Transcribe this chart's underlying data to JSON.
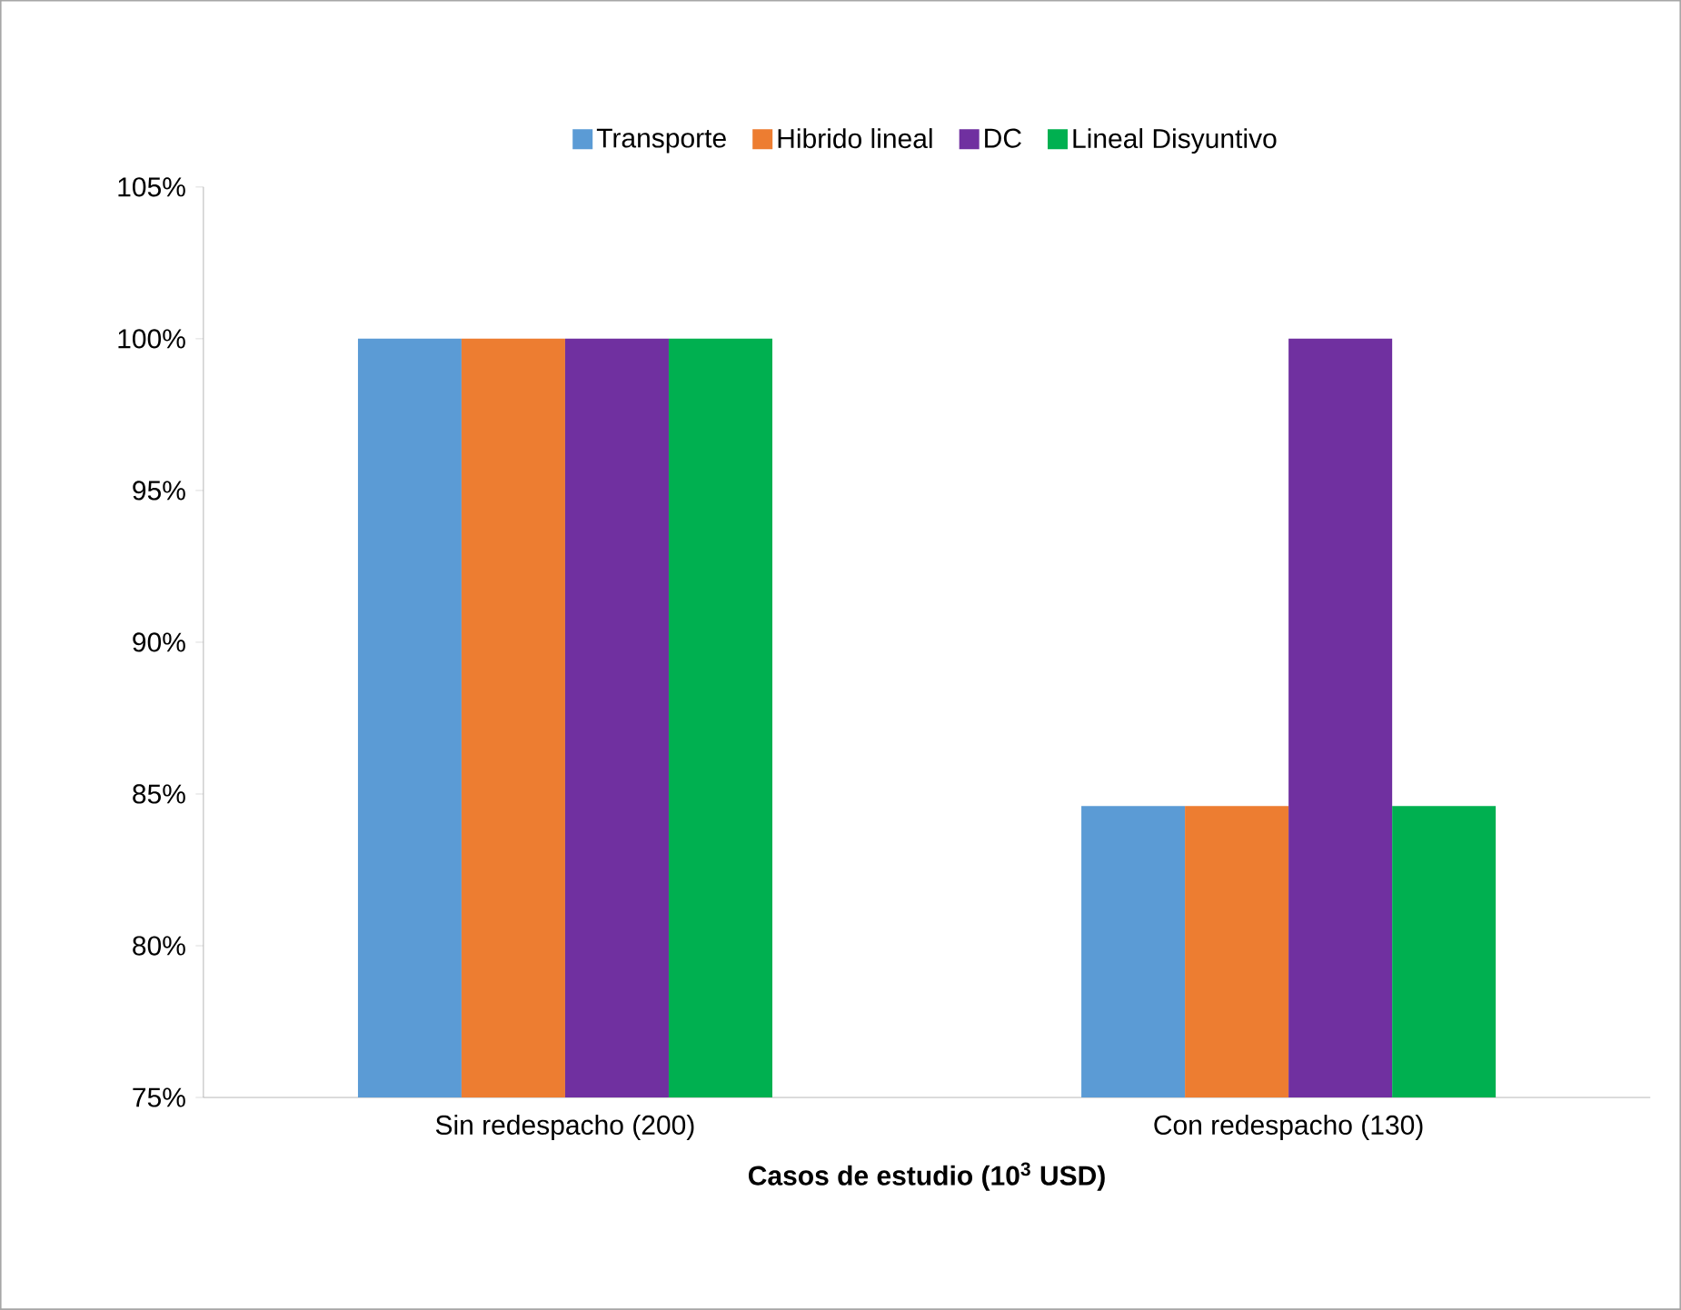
{
  "chart_data": {
    "type": "bar",
    "xlabel": "**Casos de estudio (10$^{3}$ USD)**",
    "categories": [
      "Sin redespacho (200)",
      "Con redespacho (130)"
    ],
    "series": [
      {
        "name": "Transporte",
        "color": "#5b9bd5",
        "values": [
          100,
          84.6
        ]
      },
      {
        "name": "Hibrido lineal",
        "color": "#ed7d31",
        "values": [
          100,
          84.6
        ]
      },
      {
        "name": "DC",
        "color": "#7030a0",
        "values": [
          100,
          100
        ]
      },
      {
        "name": "Lineal Disyuntivo",
        "color": "#00b050",
        "values": [
          100,
          84.6
        ]
      }
    ],
    "ylim": [
      75,
      105
    ],
    "yticks": [
      {
        "value": 75,
        "label": "75%"
      },
      {
        "value": 80,
        "label": "80%"
      },
      {
        "value": 85,
        "label": "85%"
      },
      {
        "value": 90,
        "label": "90%"
      },
      {
        "value": 95,
        "label": "95%"
      },
      {
        "value": 100,
        "label": "100%"
      },
      {
        "value": 105,
        "label": "105%"
      }
    ],
    "grid": false,
    "legend": "top"
  }
}
